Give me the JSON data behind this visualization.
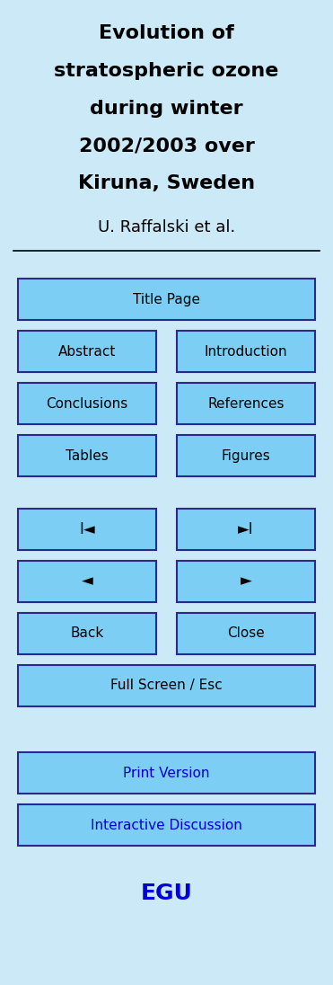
{
  "bg_color": "#cce9f7",
  "title_lines": [
    "Evolution of",
    "stratospheric ozone",
    "during winter",
    "2002/2003 over",
    "Kiruna, Sweden"
  ],
  "author": "U. Raffalski et al.",
  "title_fontsize": 16,
  "author_fontsize": 13,
  "button_bg": "#7dcef5",
  "button_edge": "#2a2a8a",
  "button_text_color": "#000000",
  "blue_text_color": "#0000cc",
  "egu_color": "#0000dd"
}
